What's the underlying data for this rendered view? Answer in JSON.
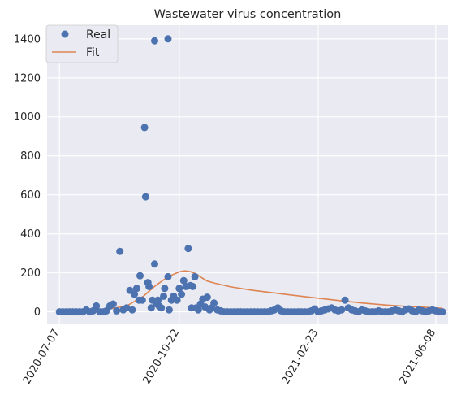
{
  "chart_data": {
    "type": "scatter",
    "title": "Wastewater virus concentration",
    "xlabel": "",
    "ylabel": "",
    "x_type": "date",
    "xlim": [
      "2020-06-26",
      "2021-06-19"
    ],
    "ylim": [
      -60,
      1470
    ],
    "xticks": [
      "2020-07-07",
      "2020-10-22",
      "2021-02-23",
      "2021-06-08"
    ],
    "yticks": [
      0,
      200,
      400,
      600,
      800,
      1000,
      1200,
      1400
    ],
    "grid": true,
    "legend_position": "top-left",
    "colors": {
      "real": "#4c72b0",
      "fit": "#dd8452",
      "background": "#eaeaf2",
      "grid": "#ffffff"
    },
    "series": [
      {
        "name": "Real",
        "kind": "scatter",
        "points": [
          [
            "2020-07-07",
            0
          ],
          [
            "2020-07-10",
            0
          ],
          [
            "2020-07-13",
            0
          ],
          [
            "2020-07-16",
            0
          ],
          [
            "2020-07-19",
            0
          ],
          [
            "2020-07-22",
            0
          ],
          [
            "2020-07-25",
            0
          ],
          [
            "2020-07-28",
            0
          ],
          [
            "2020-07-31",
            10
          ],
          [
            "2020-08-03",
            0
          ],
          [
            "2020-08-06",
            5
          ],
          [
            "2020-08-09",
            30
          ],
          [
            "2020-08-12",
            0
          ],
          [
            "2020-08-15",
            0
          ],
          [
            "2020-08-18",
            5
          ],
          [
            "2020-08-21",
            30
          ],
          [
            "2020-08-24",
            40
          ],
          [
            "2020-08-27",
            5
          ],
          [
            "2020-08-30",
            310
          ],
          [
            "2020-09-02",
            10
          ],
          [
            "2020-09-05",
            20
          ],
          [
            "2020-09-08",
            110
          ],
          [
            "2020-09-10",
            10
          ],
          [
            "2020-09-12",
            90
          ],
          [
            "2020-09-14",
            120
          ],
          [
            "2020-09-16",
            60
          ],
          [
            "2020-09-17",
            185
          ],
          [
            "2020-09-19",
            60
          ],
          [
            "2020-09-21",
            945
          ],
          [
            "2020-09-22",
            590
          ],
          [
            "2020-09-24",
            150
          ],
          [
            "2020-09-25",
            130
          ],
          [
            "2020-09-27",
            20
          ],
          [
            "2020-09-28",
            60
          ],
          [
            "2020-09-30",
            1390
          ],
          [
            "2020-09-30",
            245
          ],
          [
            "2020-10-02",
            40
          ],
          [
            "2020-10-03",
            60
          ],
          [
            "2020-10-04",
            30
          ],
          [
            "2020-10-06",
            20
          ],
          [
            "2020-10-08",
            80
          ],
          [
            "2020-10-09",
            120
          ],
          [
            "2020-10-12",
            1400
          ],
          [
            "2020-10-12",
            180
          ],
          [
            "2020-10-13",
            10
          ],
          [
            "2020-10-15",
            60
          ],
          [
            "2020-10-17",
            80
          ],
          [
            "2020-10-20",
            60
          ],
          [
            "2020-10-22",
            120
          ],
          [
            "2020-10-24",
            90
          ],
          [
            "2020-10-26",
            160
          ],
          [
            "2020-10-28",
            130
          ],
          [
            "2020-10-30",
            325
          ],
          [
            "2020-11-01",
            135
          ],
          [
            "2020-11-02",
            20
          ],
          [
            "2020-11-03",
            130
          ],
          [
            "2020-11-05",
            180
          ],
          [
            "2020-11-06",
            20
          ],
          [
            "2020-11-08",
            10
          ],
          [
            "2020-11-10",
            40
          ],
          [
            "2020-11-12",
            65
          ],
          [
            "2020-11-14",
            25
          ],
          [
            "2020-11-16",
            75
          ],
          [
            "2020-11-18",
            10
          ],
          [
            "2020-11-20",
            20
          ],
          [
            "2020-11-22",
            45
          ],
          [
            "2020-11-25",
            10
          ],
          [
            "2020-11-28",
            5
          ],
          [
            "2020-12-01",
            0
          ],
          [
            "2020-12-04",
            0
          ],
          [
            "2020-12-07",
            0
          ],
          [
            "2020-12-10",
            0
          ],
          [
            "2020-12-13",
            0
          ],
          [
            "2020-12-16",
            0
          ],
          [
            "2020-12-19",
            0
          ],
          [
            "2020-12-22",
            0
          ],
          [
            "2020-12-25",
            0
          ],
          [
            "2020-12-28",
            0
          ],
          [
            "2020-12-31",
            0
          ],
          [
            "2021-01-03",
            0
          ],
          [
            "2021-01-06",
            0
          ],
          [
            "2021-01-09",
            0
          ],
          [
            "2021-01-12",
            5
          ],
          [
            "2021-01-15",
            10
          ],
          [
            "2021-01-18",
            20
          ],
          [
            "2021-01-21",
            5
          ],
          [
            "2021-01-24",
            0
          ],
          [
            "2021-01-27",
            0
          ],
          [
            "2021-01-30",
            0
          ],
          [
            "2021-02-02",
            0
          ],
          [
            "2021-02-05",
            0
          ],
          [
            "2021-02-08",
            0
          ],
          [
            "2021-02-11",
            0
          ],
          [
            "2021-02-14",
            0
          ],
          [
            "2021-02-17",
            5
          ],
          [
            "2021-02-20",
            15
          ],
          [
            "2021-02-23",
            0
          ],
          [
            "2021-02-26",
            5
          ],
          [
            "2021-03-01",
            10
          ],
          [
            "2021-03-04",
            15
          ],
          [
            "2021-03-07",
            20
          ],
          [
            "2021-03-10",
            10
          ],
          [
            "2021-03-13",
            5
          ],
          [
            "2021-03-16",
            10
          ],
          [
            "2021-03-19",
            60
          ],
          [
            "2021-03-22",
            20
          ],
          [
            "2021-03-25",
            10
          ],
          [
            "2021-03-28",
            5
          ],
          [
            "2021-03-31",
            0
          ],
          [
            "2021-04-03",
            10
          ],
          [
            "2021-04-06",
            5
          ],
          [
            "2021-04-09",
            0
          ],
          [
            "2021-04-12",
            0
          ],
          [
            "2021-04-15",
            0
          ],
          [
            "2021-04-18",
            5
          ],
          [
            "2021-04-21",
            0
          ],
          [
            "2021-04-24",
            0
          ],
          [
            "2021-04-27",
            0
          ],
          [
            "2021-04-30",
            5
          ],
          [
            "2021-05-03",
            10
          ],
          [
            "2021-05-06",
            5
          ],
          [
            "2021-05-09",
            0
          ],
          [
            "2021-05-12",
            10
          ],
          [
            "2021-05-15",
            15
          ],
          [
            "2021-05-18",
            5
          ],
          [
            "2021-05-21",
            0
          ],
          [
            "2021-05-24",
            10
          ],
          [
            "2021-05-27",
            5
          ],
          [
            "2021-05-30",
            0
          ],
          [
            "2021-06-02",
            5
          ],
          [
            "2021-06-05",
            10
          ],
          [
            "2021-06-08",
            5
          ],
          [
            "2021-06-11",
            0
          ],
          [
            "2021-06-14",
            0
          ]
        ]
      },
      {
        "name": "Fit",
        "kind": "line",
        "points": [
          [
            "2020-07-07",
            2
          ],
          [
            "2020-07-27",
            4
          ],
          [
            "2020-08-16",
            10
          ],
          [
            "2020-09-05",
            30
          ],
          [
            "2020-09-20",
            80
          ],
          [
            "2020-10-01",
            135
          ],
          [
            "2020-10-12",
            180
          ],
          [
            "2020-10-22",
            205
          ],
          [
            "2020-10-27",
            210
          ],
          [
            "2020-11-01",
            206
          ],
          [
            "2020-11-06",
            195
          ],
          [
            "2020-11-11",
            175
          ],
          [
            "2020-11-16",
            158
          ],
          [
            "2020-11-22",
            148
          ],
          [
            "2020-12-07",
            128
          ],
          [
            "2020-12-27",
            110
          ],
          [
            "2021-01-16",
            96
          ],
          [
            "2021-02-05",
            82
          ],
          [
            "2021-02-23",
            70
          ],
          [
            "2021-03-15",
            57
          ],
          [
            "2021-04-04",
            45
          ],
          [
            "2021-04-24",
            35
          ],
          [
            "2021-05-14",
            28
          ],
          [
            "2021-06-03",
            22
          ],
          [
            "2021-06-14",
            18
          ]
        ]
      }
    ]
  }
}
